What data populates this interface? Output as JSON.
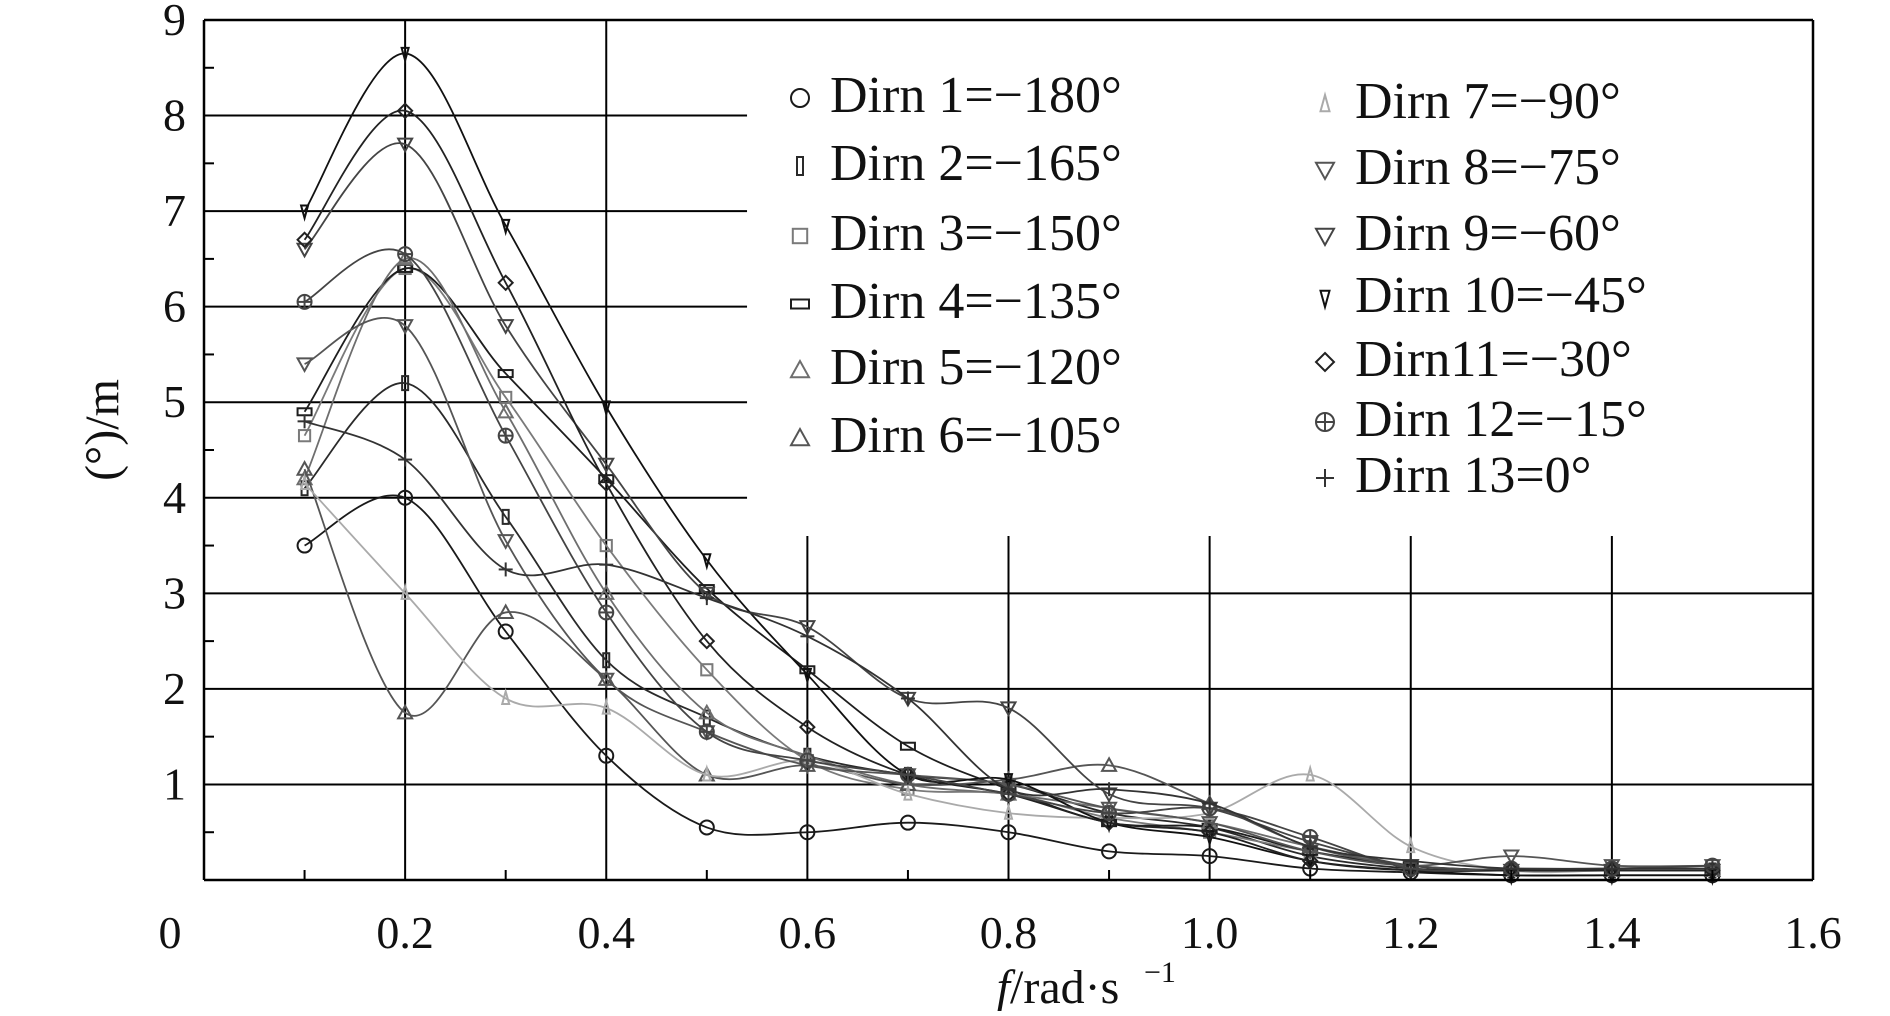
{
  "chart_data": {
    "type": "line",
    "title": "",
    "xlabel_italic": "f",
    "xlabel_rest": "/rad·s",
    "xlabel_sup": "−1",
    "ylabel": "(°)/m",
    "xlim": [
      0,
      1.6
    ],
    "ylim": [
      0,
      9
    ],
    "x_ticks": [
      "0",
      "0.2",
      "0.4",
      "0.6",
      "0.8",
      "1.0",
      "1.2",
      "1.4",
      "1.6"
    ],
    "y_ticks": [
      "1",
      "2",
      "3",
      "4",
      "5",
      "6",
      "7",
      "8",
      "9"
    ],
    "grid": "partial",
    "legend_position": "top-center, inside plot, two columns",
    "x": [
      0.1,
      0.2,
      0.3,
      0.4,
      0.5,
      0.6,
      0.7,
      0.8,
      0.9,
      1.0,
      1.1,
      1.2,
      1.3,
      1.4,
      1.5
    ],
    "series": [
      {
        "name": "Dirn 1=−180°",
        "marker": "circle",
        "color": "#1a1a1a",
        "values": [
          3.5,
          4.0,
          2.6,
          1.3,
          0.55,
          0.5,
          0.6,
          0.5,
          0.3,
          0.25,
          0.12,
          0.08,
          0.05,
          0.05,
          0.05
        ]
      },
      {
        "name": "Dirn 2=−165°",
        "marker": "thin-rect",
        "color": "#2a2a2a",
        "values": [
          4.1,
          5.2,
          3.8,
          2.3,
          1.7,
          1.3,
          1.1,
          1.0,
          0.7,
          0.55,
          0.25,
          0.12,
          0.1,
          0.1,
          0.1
        ]
      },
      {
        "name": "Dirn 3=−150°",
        "marker": "square",
        "color": "#7a7a7a",
        "values": [
          4.65,
          6.4,
          5.05,
          3.5,
          2.2,
          1.25,
          0.95,
          0.9,
          0.65,
          0.5,
          0.3,
          0.15,
          0.1,
          0.1,
          0.1
        ]
      },
      {
        "name": "Dirn 4=−135°",
        "marker": "wide-rect",
        "color": "#1e1e1e",
        "values": [
          4.9,
          6.4,
          5.3,
          4.2,
          3.05,
          2.2,
          1.4,
          0.95,
          0.6,
          0.55,
          0.3,
          0.15,
          0.1,
          0.1,
          0.1
        ]
      },
      {
        "name": "Dirn 5=−120°",
        "marker": "triangle-up",
        "color": "#6e6e6e",
        "values": [
          4.2,
          6.5,
          4.9,
          3.0,
          1.75,
          1.3,
          1.0,
          0.9,
          0.75,
          0.6,
          0.35,
          0.15,
          0.1,
          0.1,
          0.1
        ]
      },
      {
        "name": "Dirn 6=−105°",
        "marker": "triangle-up",
        "color": "#555555",
        "values": [
          4.3,
          1.75,
          2.8,
          2.1,
          1.1,
          1.2,
          1.0,
          1.05,
          1.2,
          0.8,
          0.35,
          0.15,
          0.1,
          0.1,
          0.1
        ]
      },
      {
        "name": "Dirn 7=−90°",
        "marker": "triangle-small",
        "color": "#aaaaaa",
        "values": [
          4.15,
          3.0,
          1.9,
          1.8,
          1.1,
          1.25,
          0.9,
          0.7,
          0.65,
          0.7,
          1.1,
          0.35,
          0.1,
          0.1,
          0.1
        ]
      },
      {
        "name": "Dirn 8=−75°",
        "marker": "triangle-down",
        "color": "#555555",
        "values": [
          5.4,
          5.8,
          3.55,
          2.1,
          1.55,
          1.2,
          1.1,
          1.0,
          0.75,
          0.6,
          0.3,
          0.15,
          0.25,
          0.15,
          0.15
        ]
      },
      {
        "name": "Dirn 9=−60°",
        "marker": "triangle-down",
        "color": "#444444",
        "values": [
          6.6,
          7.7,
          5.8,
          4.35,
          3.0,
          2.65,
          1.9,
          1.8,
          0.9,
          0.75,
          0.4,
          0.15,
          0.1,
          0.1,
          0.1
        ]
      },
      {
        "name": "Dirn 10=−45°",
        "marker": "triangle-down-small",
        "color": "#111111",
        "values": [
          7.0,
          8.65,
          6.85,
          4.95,
          3.35,
          2.15,
          1.1,
          1.05,
          0.6,
          0.45,
          0.2,
          0.1,
          0.05,
          0.05,
          0.05
        ]
      },
      {
        "name": "Dirn11=−30°",
        "marker": "diamond",
        "color": "#222222",
        "values": [
          6.7,
          8.05,
          6.25,
          4.15,
          2.5,
          1.6,
          1.1,
          0.9,
          0.6,
          0.5,
          0.2,
          0.1,
          0.1,
          0.1,
          0.1
        ]
      },
      {
        "name": "Dirn 12=−15°",
        "marker": "cross-circle",
        "color": "#444444",
        "values": [
          6.05,
          6.55,
          4.65,
          2.8,
          1.55,
          1.25,
          1.1,
          0.9,
          0.7,
          0.75,
          0.45,
          0.12,
          0.12,
          0.12,
          0.15
        ]
      },
      {
        "name": "Dirn 13=0°",
        "marker": "plus",
        "color": "#333333",
        "values": [
          4.8,
          4.4,
          3.25,
          3.3,
          2.95,
          2.55,
          1.9,
          0.95,
          0.95,
          0.8,
          0.35,
          0.2,
          0.12,
          0.12,
          0.12
        ]
      }
    ]
  }
}
